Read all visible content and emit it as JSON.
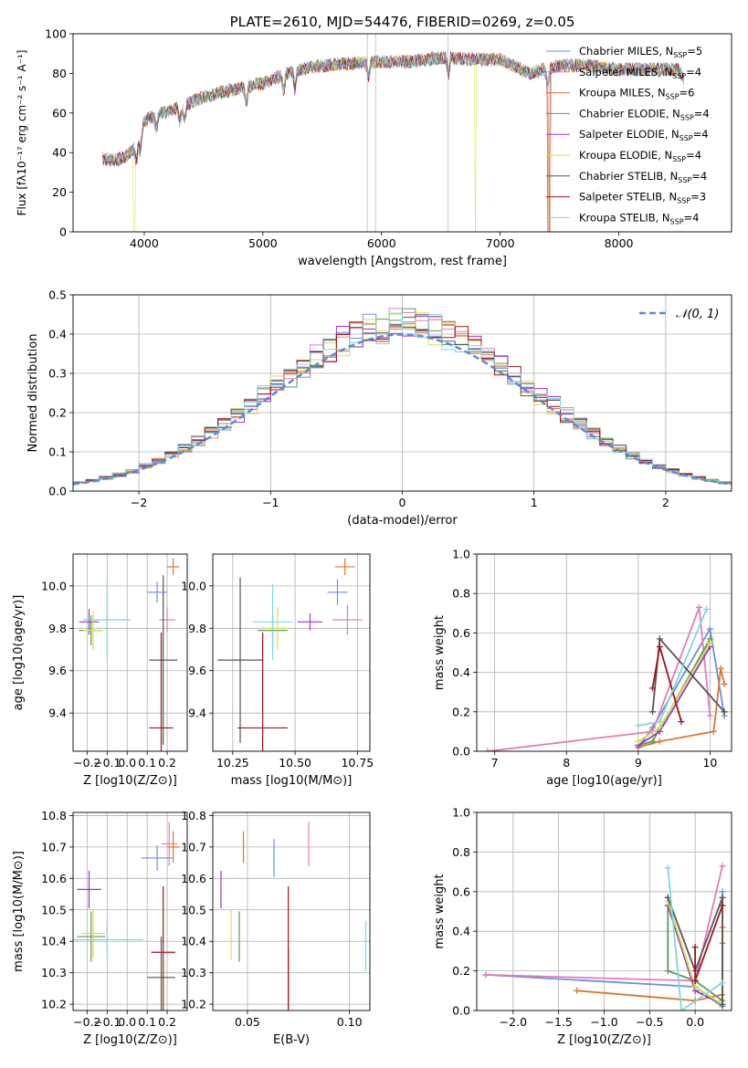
{
  "colors": {
    "Chabrier MILES": "#6c8fdd",
    "Salpeter MILES": "#e57cb6",
    "Kroupa MILES": "#d9782c",
    "Chabrier ELODIE": "#5a9a5a",
    "Salpeter ELODIE": "#9a37c2",
    "Kroupa ELODIE": "#d6e04a",
    "Chabrier STELIB": "#555555",
    "Salpeter STELIB": "#a3111c",
    "Kroupa STELIB": "#7fd6de",
    "normal": "#5b8bd6",
    "grid": "#b0b0b0"
  },
  "chart_data": [
    {
      "id": "spectrum",
      "type": "line",
      "title": "PLATE=2610, MJD=54476, FIBERID=0269, z=0.05",
      "xlabel": "wavelength [Angstrom, rest frame]",
      "ylabel": "Flux [fλ10⁻¹⁷ erg cm⁻² s⁻¹ A⁻¹]",
      "xlim": [
        3400,
        8950
      ],
      "ylim": [
        0,
        100
      ],
      "xticks": [
        4000,
        5000,
        6000,
        7000,
        8000
      ],
      "yticks": [
        0,
        20,
        40,
        60,
        80,
        100
      ],
      "grid": false,
      "legend_position": "right",
      "continuum": {
        "x": [
          3650,
          3750,
          3850,
          3950,
          4000,
          4100,
          4250,
          4500,
          4750,
          5000,
          5250,
          5500,
          5750,
          6000,
          6250,
          6500,
          6750,
          7000,
          7250,
          7500,
          7750,
          8000,
          8250,
          8500,
          8550
        ],
        "y": [
          37,
          36,
          38,
          45,
          56,
          59,
          62,
          68,
          72,
          75,
          81,
          84,
          85,
          86,
          86,
          88,
          87,
          87,
          80,
          84,
          84,
          82,
          82,
          82,
          77
        ]
      },
      "series": [
        {
          "name": "Chabrier MILES",
          "nssp": 5
        },
        {
          "name": "Salpeter MILES",
          "nssp": 4
        },
        {
          "name": "Kroupa MILES",
          "nssp": 6
        },
        {
          "name": "Chabrier ELODIE",
          "nssp": 4
        },
        {
          "name": "Salpeter ELODIE",
          "nssp": 4
        },
        {
          "name": "Kroupa ELODIE",
          "nssp": 4
        },
        {
          "name": "Chabrier STELIB",
          "nssp": 4
        },
        {
          "name": "Salpeter STELIB",
          "nssp": 3
        },
        {
          "name": "Kroupa STELIB",
          "nssp": 4
        }
      ]
    },
    {
      "id": "residuals",
      "type": "step",
      "xlabel": "(data-model)/error",
      "ylabel": "Normed distribution",
      "xlim": [
        -2.5,
        2.5
      ],
      "ylim": [
        0,
        0.5
      ],
      "xticks": [
        -2,
        -1,
        0,
        1,
        2
      ],
      "yticks": [
        0.0,
        0.1,
        0.2,
        0.3,
        0.4,
        0.5
      ],
      "grid": true,
      "legend": "𝒩(0, 1)",
      "legend_position": "top-right",
      "bin_width": 0.1
    },
    {
      "id": "age-vs-Z",
      "type": "errorbar",
      "xlabel": "Z [log10(Z/Z⊙)]",
      "ylabel": "age [log10(age/yr)]",
      "xlim": [
        -0.27,
        0.3
      ],
      "ylim": [
        9.22,
        10.15
      ],
      "xticks": [
        -0.2,
        -0.1,
        0.0,
        0.1,
        0.2
      ],
      "yticks": [
        9.4,
        9.6,
        9.8,
        10.0
      ],
      "grid": true,
      "points": [
        {
          "series": "Chabrier MILES",
          "x": 0.15,
          "y": 9.97,
          "xerr": 0.05,
          "yerr": 0.05
        },
        {
          "series": "Salpeter MILES",
          "x": 0.2,
          "y": 9.84,
          "xerr": 0.04,
          "yerr": 0.06
        },
        {
          "series": "Kroupa MILES",
          "x": 0.23,
          "y": 10.09,
          "xerr": 0.03,
          "yerr": 0.04
        },
        {
          "series": "Chabrier ELODIE",
          "x": -0.18,
          "y": 9.79,
          "xerr": 0.06,
          "yerr": 0.07
        },
        {
          "series": "Salpeter ELODIE",
          "x": -0.19,
          "y": 9.83,
          "xerr": 0.05,
          "yerr": 0.06
        },
        {
          "series": "Kroupa ELODIE",
          "x": -0.17,
          "y": 9.79,
          "xerr": 0.05,
          "yerr": 0.09
        },
        {
          "series": "Chabrier STELIB",
          "x": 0.18,
          "y": 9.65,
          "xerr": 0.07,
          "yerr": 0.4
        },
        {
          "series": "Salpeter STELIB",
          "x": 0.17,
          "y": 9.33,
          "xerr": 0.06,
          "yerr": 0.45
        },
        {
          "series": "Kroupa STELIB",
          "x": -0.1,
          "y": 9.84,
          "xerr": 0.12,
          "yerr": 0.18
        }
      ]
    },
    {
      "id": "age-vs-mass",
      "type": "errorbar",
      "xlabel": "mass [log10(M/M⊙)]",
      "ylabel": "",
      "xlim": [
        10.17,
        10.8
      ],
      "ylim": [
        9.22,
        10.15
      ],
      "xticks": [
        10.25,
        10.5,
        10.75
      ],
      "yticks": [
        9.4,
        9.6,
        9.8,
        10.0
      ],
      "grid": true,
      "points": [
        {
          "series": "Chabrier MILES",
          "x": 10.67,
          "y": 9.97,
          "xerr": 0.04,
          "yerr": 0.06
        },
        {
          "series": "Salpeter MILES",
          "x": 10.71,
          "y": 9.84,
          "xerr": 0.06,
          "yerr": 0.07
        },
        {
          "series": "Kroupa MILES",
          "x": 10.7,
          "y": 10.09,
          "xerr": 0.04,
          "yerr": 0.04
        },
        {
          "series": "Chabrier ELODIE",
          "x": 10.41,
          "y": 9.79,
          "xerr": 0.06,
          "yerr": 0.07
        },
        {
          "series": "Salpeter ELODIE",
          "x": 10.56,
          "y": 9.83,
          "xerr": 0.05,
          "yerr": 0.04
        },
        {
          "series": "Kroupa ELODIE",
          "x": 10.43,
          "y": 9.8,
          "xerr": 0.05,
          "yerr": 0.1
        },
        {
          "series": "Chabrier STELIB",
          "x": 10.28,
          "y": 9.65,
          "xerr": 0.09,
          "yerr": 0.39
        },
        {
          "series": "Salpeter STELIB",
          "x": 10.37,
          "y": 9.33,
          "xerr": 0.1,
          "yerr": 0.45
        },
        {
          "series": "Kroupa STELIB",
          "x": 10.41,
          "y": 9.83,
          "xerr": 0.08,
          "yerr": 0.18
        }
      ]
    },
    {
      "id": "weight-vs-age",
      "type": "line",
      "xlabel": "age [log10(age/yr)]",
      "ylabel": "mass weight",
      "xlim": [
        6.75,
        10.3
      ],
      "ylim": [
        0,
        1
      ],
      "xticks": [
        7,
        8,
        9,
        10
      ],
      "yticks": [
        0.0,
        0.2,
        0.4,
        0.6,
        0.8,
        1.0
      ],
      "grid": true,
      "series": [
        {
          "name": "Chabrier MILES",
          "x": [
            9.0,
            9.2,
            10.0,
            10.2
          ],
          "y": [
            0.02,
            0.12,
            0.62,
            0.18
          ]
        },
        {
          "name": "Salpeter MILES",
          "x": [
            6.9,
            9.2,
            9.85,
            10.0
          ],
          "y": [
            0.0,
            0.1,
            0.73,
            0.18
          ]
        },
        {
          "name": "Kroupa MILES",
          "x": [
            9.0,
            9.3,
            10.05,
            10.15,
            10.2
          ],
          "y": [
            0.02,
            0.05,
            0.1,
            0.42,
            0.34
          ]
        },
        {
          "name": "Chabrier ELODIE",
          "x": [
            9.0,
            9.2,
            10.0
          ],
          "y": [
            0.03,
            0.05,
            0.57
          ]
        },
        {
          "name": "Salpeter ELODIE",
          "x": [
            9.0,
            9.3,
            10.0
          ],
          "y": [
            0.03,
            0.1,
            0.53
          ]
        },
        {
          "name": "Kroupa ELODIE",
          "x": [
            9.0,
            9.3,
            10.0
          ],
          "y": [
            0.05,
            0.12,
            0.55
          ]
        },
        {
          "name": "Chabrier STELIB",
          "x": [
            9.2,
            9.3,
            10.2
          ],
          "y": [
            0.2,
            0.57,
            0.2
          ]
        },
        {
          "name": "Salpeter STELIB",
          "x": [
            9.2,
            9.3,
            9.6
          ],
          "y": [
            0.32,
            0.53,
            0.15
          ]
        },
        {
          "name": "Kroupa STELIB",
          "x": [
            9.0,
            9.3,
            9.95
          ],
          "y": [
            0.13,
            0.15,
            0.72
          ]
        }
      ]
    },
    {
      "id": "mass-vs-Z",
      "type": "errorbar",
      "xlabel": "Z [log10(Z/Z⊙)]",
      "ylabel": "mass [log10(M/M⊙)]",
      "xlim": [
        -0.27,
        0.3
      ],
      "ylim": [
        10.18,
        10.81
      ],
      "xticks": [
        -0.2,
        -0.1,
        0.0,
        0.1,
        0.2
      ],
      "yticks": [
        10.2,
        10.3,
        10.4,
        10.5,
        10.6,
        10.7,
        10.8
      ],
      "grid": true,
      "points": [
        {
          "series": "Chabrier MILES",
          "x": 0.15,
          "y": 10.665,
          "xerr": 0.08,
          "yerr": 0.04
        },
        {
          "series": "Salpeter MILES",
          "x": 0.21,
          "y": 10.71,
          "xerr": 0.04,
          "yerr": 0.07
        },
        {
          "series": "Kroupa MILES",
          "x": 0.23,
          "y": 10.7,
          "xerr": 0.03,
          "yerr": 0.05
        },
        {
          "series": "Chabrier ELODIE",
          "x": -0.18,
          "y": 10.415,
          "xerr": 0.07,
          "yerr": 0.08
        },
        {
          "series": "Salpeter ELODIE",
          "x": -0.19,
          "y": 10.565,
          "xerr": 0.06,
          "yerr": 0.06
        },
        {
          "series": "Kroupa ELODIE",
          "x": -0.17,
          "y": 10.425,
          "xerr": 0.06,
          "yerr": 0.08
        },
        {
          "series": "Chabrier STELIB",
          "x": 0.17,
          "y": 10.285,
          "xerr": 0.07,
          "yerr": 0.13
        },
        {
          "series": "Salpeter STELIB",
          "x": 0.18,
          "y": 10.365,
          "xerr": 0.06,
          "yerr": 0.21
        },
        {
          "series": "Kroupa STELIB",
          "x": -0.1,
          "y": 10.405,
          "xerr": 0.18,
          "yerr": 0.06
        }
      ]
    },
    {
      "id": "mass-vs-EBV",
      "type": "errorbar",
      "xlabel": "E(B-V)",
      "ylabel": "",
      "xlim": [
        0.033,
        0.11
      ],
      "ylim": [
        10.18,
        10.81
      ],
      "xticks": [
        0.05,
        0.1
      ],
      "yticks": [
        10.2,
        10.3,
        10.4,
        10.5,
        10.6,
        10.7,
        10.8
      ],
      "grid": true,
      "points": [
        {
          "series": "Chabrier MILES",
          "x": 0.063,
          "y": 10.665,
          "xerr": 0,
          "yerr": 0.06
        },
        {
          "series": "Salpeter MILES",
          "x": 0.08,
          "y": 10.71,
          "xerr": 0,
          "yerr": 0.07
        },
        {
          "series": "Kroupa MILES",
          "x": 0.048,
          "y": 10.7,
          "xerr": 0,
          "yerr": 0.05
        },
        {
          "series": "Chabrier ELODIE",
          "x": 0.046,
          "y": 10.415,
          "xerr": 0,
          "yerr": 0.08
        },
        {
          "series": "Salpeter ELODIE",
          "x": 0.037,
          "y": 10.565,
          "xerr": 0,
          "yerr": 0.06
        },
        {
          "series": "Kroupa ELODIE",
          "x": 0.042,
          "y": 10.42,
          "xerr": 0,
          "yerr": 0.08
        },
        {
          "series": "Chabrier STELIB",
          "x": 0.07,
          "y": 10.28,
          "xerr": 0,
          "yerr": 0.1
        },
        {
          "series": "Salpeter STELIB",
          "x": 0.07,
          "y": 10.365,
          "xerr": 0,
          "yerr": 0.21
        },
        {
          "series": "Kroupa STELIB",
          "x": 0.108,
          "y": 10.385,
          "xerr": 0,
          "yerr": 0.08
        }
      ]
    },
    {
      "id": "weight-vs-Z",
      "type": "line",
      "xlabel": "Z [log10(Z/Z⊙)]",
      "ylabel": "mass weight",
      "xlim": [
        -2.4,
        0.4
      ],
      "ylim": [
        0,
        1
      ],
      "xticks": [
        -2.0,
        -1.5,
        -1.0,
        -0.5,
        0.0
      ],
      "yticks": [
        0.0,
        0.2,
        0.4,
        0.6,
        0.8,
        1.0
      ],
      "grid": true,
      "series": [
        {
          "name": "Chabrier MILES",
          "x": [
            -2.3,
            0.0,
            0.3,
            0.3
          ],
          "y": [
            0.18,
            0.12,
            0.02,
            0.6
          ]
        },
        {
          "name": "Salpeter MILES",
          "x": [
            -2.3,
            0.0,
            0.3
          ],
          "y": [
            0.18,
            0.15,
            0.73
          ]
        },
        {
          "name": "Kroupa MILES",
          "x": [
            -1.3,
            0.0,
            0.3,
            0.3,
            0.3
          ],
          "y": [
            0.1,
            0.05,
            0.08,
            0.42,
            0.34
          ]
        },
        {
          "name": "Chabrier ELODIE",
          "x": [
            -0.3,
            -0.3,
            0.0,
            0.3
          ],
          "y": [
            0.57,
            0.2,
            0.15,
            0.05
          ]
        },
        {
          "name": "Salpeter ELODIE",
          "x": [
            -0.3,
            0.0,
            0.3
          ],
          "y": [
            0.53,
            0.1,
            0.03
          ]
        },
        {
          "name": "Kroupa ELODIE",
          "x": [
            -0.3,
            0.0,
            0.3
          ],
          "y": [
            0.55,
            0.12,
            0.03
          ]
        },
        {
          "name": "Chabrier STELIB",
          "x": [
            -0.3,
            0.0,
            0.3,
            0.3
          ],
          "y": [
            0.57,
            0.2,
            0.57,
            0.03
          ]
        },
        {
          "name": "Salpeter STELIB",
          "x": [
            0.0,
            0.0,
            0.3
          ],
          "y": [
            0.32,
            0.15,
            0.53
          ]
        },
        {
          "name": "Kroupa STELIB",
          "x": [
            -0.3,
            -0.15,
            0.3
          ],
          "y": [
            0.72,
            0.0,
            0.14
          ]
        }
      ]
    }
  ]
}
